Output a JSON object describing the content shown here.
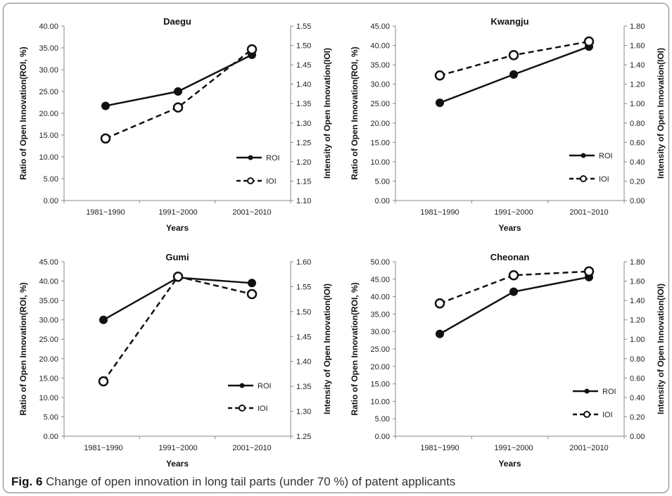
{
  "figure_label": "Fig. 6",
  "caption": "Change of open innovation in long tail parts (under 70 %) of patent applicants",
  "chart_data": [
    {
      "type": "line",
      "title": "Daegu",
      "categories": [
        "1981~1990",
        "1991~2000",
        "2001~2010"
      ],
      "xlabel": "Years",
      "ylabel": "Ratio of Open Innovation(ROI, %)",
      "y2label": "Intensity of Open Innovation(IOI)",
      "ylim": [
        0,
        40
      ],
      "ystep": 5,
      "ytick_decimals": 2,
      "y2lim": [
        1.1,
        1.55
      ],
      "y2step": 0.05,
      "y2tick_decimals": 2,
      "legend": "right",
      "series": [
        {
          "name": "ROI",
          "axis": "left",
          "style": "solid",
          "values": [
            21.7,
            25.0,
            33.4
          ]
        },
        {
          "name": "IOI",
          "axis": "right",
          "style": "dashed",
          "values": [
            1.26,
            1.34,
            1.49
          ]
        }
      ]
    },
    {
      "type": "line",
      "title": "Kwangju",
      "categories": [
        "1981~1990",
        "1991~2000",
        "2001~2010"
      ],
      "xlabel": "Years",
      "ylabel": "Ratio of Open Innovation(ROI, %)",
      "y2label": "Intensity of Open Innovation(IOI)",
      "ylim": [
        0,
        45
      ],
      "ystep": 5,
      "ytick_decimals": 2,
      "y2lim": [
        0,
        1.8
      ],
      "y2step": 0.2,
      "y2tick_decimals": 2,
      "legend": "right",
      "series": [
        {
          "name": "ROI",
          "axis": "left",
          "style": "solid",
          "values": [
            25.2,
            32.5,
            39.7
          ]
        },
        {
          "name": "IOI",
          "axis": "right",
          "style": "dashed",
          "values": [
            1.29,
            1.5,
            1.64
          ]
        }
      ]
    },
    {
      "type": "line",
      "title": "Gumi",
      "categories": [
        "1981~1990",
        "1991~2000",
        "2001~2010"
      ],
      "xlabel": "Years",
      "ylabel": "Ratio of Open Innovation(ROI, %)",
      "y2label": "Intensity of Open Innovation(IOI)",
      "ylim": [
        0,
        45
      ],
      "ystep": 5,
      "ytick_decimals": 2,
      "y2lim": [
        1.25,
        1.6
      ],
      "y2step": 0.05,
      "y2tick_decimals": 2,
      "legend": "right",
      "series": [
        {
          "name": "ROI",
          "axis": "left",
          "style": "solid",
          "values": [
            30.0,
            40.9,
            39.5
          ]
        },
        {
          "name": "IOI",
          "axis": "right",
          "style": "dashed",
          "values": [
            1.36,
            1.57,
            1.535
          ]
        }
      ]
    },
    {
      "type": "line",
      "title": "Cheonan",
      "categories": [
        "1981~1990",
        "1991~2000",
        "2001~2010"
      ],
      "xlabel": "Years",
      "ylabel": "Ratio of Open Innovation(ROI, %)",
      "y2label": "Intensity of Open Innovation(IOI)",
      "ylim": [
        0,
        50
      ],
      "ystep": 5,
      "ytick_decimals": 2,
      "y2lim": [
        0,
        1.8
      ],
      "y2step": 0.2,
      "y2tick_decimals": 2,
      "legend": "right",
      "series": [
        {
          "name": "ROI",
          "axis": "left",
          "style": "solid",
          "values": [
            29.3,
            41.4,
            45.6
          ]
        },
        {
          "name": "IOI",
          "axis": "right",
          "style": "dashed",
          "values": [
            1.37,
            1.66,
            1.7
          ]
        }
      ]
    }
  ]
}
